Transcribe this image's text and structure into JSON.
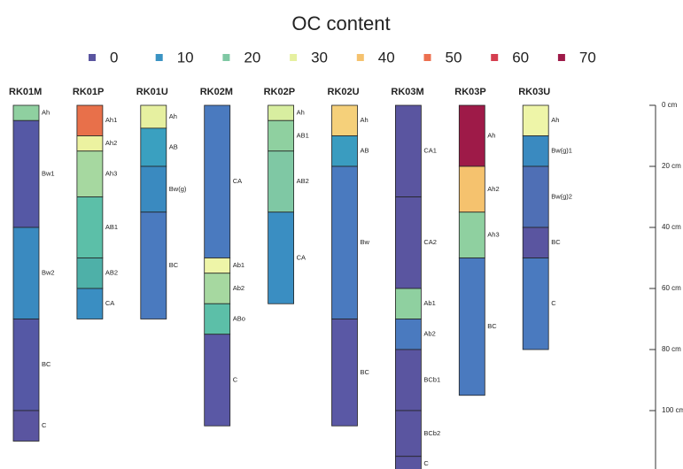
{
  "chart_data": {
    "type": "soil-profile",
    "title": "OC content",
    "legend": [
      {
        "label": 0,
        "color": "#5a55a0"
      },
      {
        "label": 10,
        "color": "#3a93c3"
      },
      {
        "label": 20,
        "color": "#7fc8a4"
      },
      {
        "label": 30,
        "color": "#e6f0a0"
      },
      {
        "label": 40,
        "color": "#f5c26e"
      },
      {
        "label": 50,
        "color": "#ec7050"
      },
      {
        "label": 60,
        "color": "#d53e4f"
      },
      {
        "label": 70,
        "color": "#9e1a48"
      }
    ],
    "ylim": [
      0,
      120
    ],
    "yticks": [
      {
        "value": 0,
        "label": "0 cm"
      },
      {
        "value": 20,
        "label": "20 cm"
      },
      {
        "value": 40,
        "label": "40 cm"
      },
      {
        "value": 60,
        "label": "60 cm"
      },
      {
        "value": 80,
        "label": "80 cm"
      },
      {
        "value": 100,
        "label": "100 cm"
      }
    ],
    "profiles": [
      {
        "name": "RK01M",
        "horizons": [
          {
            "name": "Ah",
            "top": 0,
            "bottom": 5,
            "color": "#8fd0a0"
          },
          {
            "name": "Bw1",
            "top": 5,
            "bottom": 40,
            "color": "#5558a5"
          },
          {
            "name": "Bw2",
            "top": 40,
            "bottom": 70,
            "color": "#3a8ac0"
          },
          {
            "name": "BC",
            "top": 70,
            "bottom": 100,
            "color": "#5558a5"
          },
          {
            "name": "C",
            "top": 100,
            "bottom": 110,
            "color": "#5a55a0"
          }
        ]
      },
      {
        "name": "RK01P",
        "horizons": [
          {
            "name": "Ah1",
            "top": 0,
            "bottom": 10,
            "color": "#e8704a"
          },
          {
            "name": "Ah2",
            "top": 10,
            "bottom": 15,
            "color": "#ecf2a0"
          },
          {
            "name": "Ah3",
            "top": 15,
            "bottom": 30,
            "color": "#a6d8a0"
          },
          {
            "name": "AB1",
            "top": 30,
            "bottom": 50,
            "color": "#5cbfa8"
          },
          {
            "name": "AB2",
            "top": 50,
            "bottom": 60,
            "color": "#4eb0a8"
          },
          {
            "name": "CA",
            "top": 60,
            "bottom": 70,
            "color": "#3a8ec2"
          }
        ]
      },
      {
        "name": "RK01U",
        "horizons": [
          {
            "name": "Ah",
            "top": 0,
            "bottom": 7.5,
            "color": "#e6f0a0"
          },
          {
            "name": "AB",
            "top": 7.5,
            "bottom": 20,
            "color": "#3aa0c0"
          },
          {
            "name": "Bw(g)",
            "top": 20,
            "bottom": 35,
            "color": "#3a8ac0"
          },
          {
            "name": "BC",
            "top": 35,
            "bottom": 70,
            "color": "#4a7abf"
          }
        ]
      },
      {
        "name": "RK02M",
        "horizons": [
          {
            "name": "CA",
            "top": 0,
            "bottom": 50,
            "color": "#4a7abf"
          },
          {
            "name": "Ab1",
            "top": 50,
            "bottom": 55,
            "color": "#eef5a8"
          },
          {
            "name": "Ab2",
            "top": 55,
            "bottom": 65,
            "color": "#a6d8a0"
          },
          {
            "name": "ABo",
            "top": 65,
            "bottom": 75,
            "color": "#5cbfa8"
          },
          {
            "name": "C",
            "top": 75,
            "bottom": 105,
            "color": "#5a58a5"
          }
        ]
      },
      {
        "name": "RK02P",
        "horizons": [
          {
            "name": "Ah",
            "top": 0,
            "bottom": 5,
            "color": "#d8eea0"
          },
          {
            "name": "AB1",
            "top": 5,
            "bottom": 15,
            "color": "#8fd0a0"
          },
          {
            "name": "AB2",
            "top": 15,
            "bottom": 35,
            "color": "#7fc8a4"
          },
          {
            "name": "CA",
            "top": 35,
            "bottom": 65,
            "color": "#3a8ec2"
          }
        ]
      },
      {
        "name": "RK02U",
        "horizons": [
          {
            "name": "Ah",
            "top": 0,
            "bottom": 10,
            "color": "#f5d07a"
          },
          {
            "name": "AB",
            "top": 10,
            "bottom": 20,
            "color": "#3a9cc0"
          },
          {
            "name": "Bw",
            "top": 20,
            "bottom": 70,
            "color": "#4a7abf"
          },
          {
            "name": "BC",
            "top": 70,
            "bottom": 105,
            "color": "#5a58a5"
          }
        ]
      },
      {
        "name": "RK03M",
        "horizons": [
          {
            "name": "CA1",
            "top": 0,
            "bottom": 30,
            "color": "#5a55a0"
          },
          {
            "name": "CA2",
            "top": 30,
            "bottom": 60,
            "color": "#5a55a0"
          },
          {
            "name": "Ab1",
            "top": 60,
            "bottom": 70,
            "color": "#8fd0a0"
          },
          {
            "name": "Ab2",
            "top": 70,
            "bottom": 80,
            "color": "#4a7abf"
          },
          {
            "name": "BCb1",
            "top": 80,
            "bottom": 100,
            "color": "#5a55a0"
          },
          {
            "name": "BCb2",
            "top": 100,
            "bottom": 115,
            "color": "#5a55a0"
          },
          {
            "name": "C",
            "top": 115,
            "bottom": 120,
            "color": "#5a55a0"
          }
        ]
      },
      {
        "name": "RK03P",
        "horizons": [
          {
            "name": "Ah",
            "top": 0,
            "bottom": 20,
            "color": "#9e1a48"
          },
          {
            "name": "Ah2",
            "top": 20,
            "bottom": 35,
            "color": "#f5c26e"
          },
          {
            "name": "Ah3",
            "top": 35,
            "bottom": 50,
            "color": "#8fd0a0"
          },
          {
            "name": "BC",
            "top": 50,
            "bottom": 95,
            "color": "#4a7abf"
          }
        ]
      },
      {
        "name": "RK03U",
        "horizons": [
          {
            "name": "Ah",
            "top": 0,
            "bottom": 10,
            "color": "#eef5a8"
          },
          {
            "name": "Bw(g)1",
            "top": 10,
            "bottom": 20,
            "color": "#3a8ac0"
          },
          {
            "name": "Bw(g)2",
            "top": 20,
            "bottom": 40,
            "color": "#4f6fb5"
          },
          {
            "name": "BC",
            "top": 40,
            "bottom": 50,
            "color": "#5a55a0"
          },
          {
            "name": "C",
            "top": 50,
            "bottom": 80,
            "color": "#4a7abf"
          }
        ]
      }
    ]
  }
}
